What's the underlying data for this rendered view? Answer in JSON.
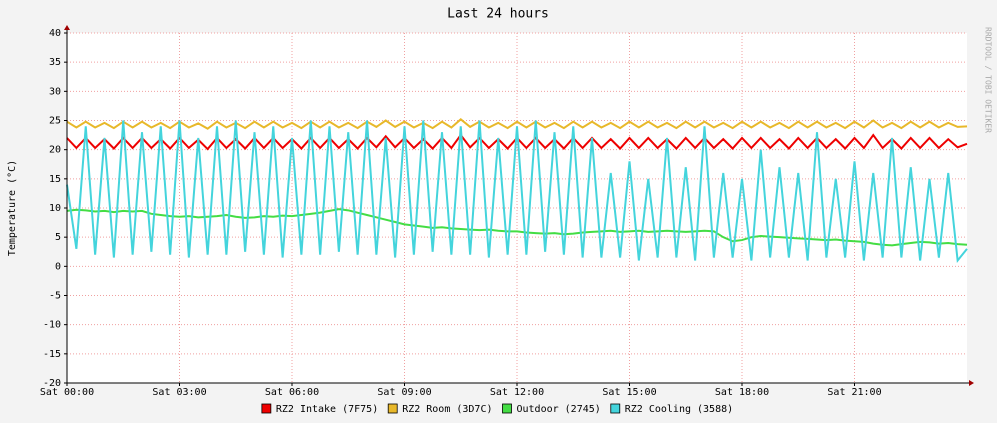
{
  "chart_data": {
    "type": "line",
    "title": "Last 24 hours",
    "y_label": "Temperature (°C)",
    "watermark": "RRDTOOL / TOBI OETIKER",
    "xlim": [
      0,
      24
    ],
    "xticks": [
      {
        "value": 0,
        "label": "Sat 00:00"
      },
      {
        "value": 3,
        "label": "Sat 03:00"
      },
      {
        "value": 6,
        "label": "Sat 06:00"
      },
      {
        "value": 9,
        "label": "Sat 09:00"
      },
      {
        "value": 12,
        "label": "Sat 12:00"
      },
      {
        "value": 15,
        "label": "Sat 15:00"
      },
      {
        "value": 18,
        "label": "Sat 18:00"
      },
      {
        "value": 21,
        "label": "Sat 21:00"
      }
    ],
    "ylim": [
      -20,
      40
    ],
    "yticks": [
      40,
      35,
      30,
      25,
      20,
      15,
      10,
      5,
      0,
      -5,
      -10,
      -15,
      -20
    ],
    "grid": true,
    "legend": "bottom",
    "x": [
      0,
      0.25,
      0.5,
      0.75,
      1,
      1.25,
      1.5,
      1.75,
      2,
      2.25,
      2.5,
      2.75,
      3,
      3.25,
      3.5,
      3.75,
      4,
      4.25,
      4.5,
      4.75,
      5,
      5.25,
      5.5,
      5.75,
      6,
      6.25,
      6.5,
      6.75,
      7,
      7.25,
      7.5,
      7.75,
      8,
      8.25,
      8.5,
      8.75,
      9,
      9.25,
      9.5,
      9.75,
      10,
      10.25,
      10.5,
      10.75,
      11,
      11.25,
      11.5,
      11.75,
      12,
      12.25,
      12.5,
      12.75,
      13,
      13.25,
      13.5,
      13.75,
      14,
      14.25,
      14.5,
      14.75,
      15,
      15.25,
      15.5,
      15.75,
      16,
      16.25,
      16.5,
      16.75,
      17,
      17.25,
      17.5,
      17.75,
      18,
      18.25,
      18.5,
      18.75,
      19,
      19.25,
      19.5,
      19.75,
      20,
      20.25,
      20.5,
      20.75,
      21,
      21.25,
      21.5,
      21.75,
      22,
      22.25,
      22.5,
      22.75,
      23,
      23.25,
      23.5,
      23.75,
      24
    ],
    "series": [
      {
        "name": "RZ2 Intake (7F75)",
        "color": "#ee0000",
        "values": [
          22,
          20.3,
          22,
          20.3,
          21.8,
          20.2,
          22,
          20.3,
          22,
          20.3,
          21.8,
          20.2,
          22,
          20.3,
          21.7,
          20.1,
          22,
          20.3,
          21.8,
          20.2,
          22,
          20.3,
          22,
          20.3,
          21.8,
          20.2,
          22,
          20.3,
          22,
          20.3,
          21.8,
          20.2,
          22,
          20.4,
          22.3,
          20.4,
          22,
          20.3,
          21.8,
          20.2,
          22,
          20.3,
          22.5,
          20.4,
          22,
          20.3,
          21.8,
          20.2,
          22,
          20.3,
          22,
          20.3,
          21.8,
          20.2,
          22,
          20.3,
          22,
          20.3,
          21.8,
          20.2,
          22,
          20.3,
          22,
          20.3,
          21.8,
          20.2,
          22,
          20.3,
          22,
          20.3,
          21.8,
          20.2,
          22,
          20.3,
          22,
          20.3,
          21.8,
          20.2,
          22,
          20.3,
          22,
          20.3,
          21.8,
          20.2,
          22,
          20.3,
          22.5,
          20.3,
          21.8,
          20.2,
          22,
          20.3,
          22,
          20.3,
          21.8,
          20.4,
          21
        ]
      },
      {
        "name": "RZ2 Room (3D7C)",
        "color": "#e8b82a",
        "values": [
          24.8,
          23.8,
          24.8,
          23.8,
          24.6,
          23.7,
          24.8,
          23.8,
          24.8,
          23.8,
          24.6,
          23.7,
          24.8,
          23.8,
          24.5,
          23.6,
          24.8,
          23.8,
          24.6,
          23.7,
          24.8,
          23.8,
          24.8,
          23.8,
          24.6,
          23.7,
          24.8,
          23.8,
          24.8,
          23.8,
          24.6,
          23.7,
          24.8,
          23.9,
          25,
          23.9,
          24.8,
          23.8,
          24.6,
          23.7,
          24.8,
          23.8,
          25.2,
          23.9,
          24.8,
          23.8,
          24.6,
          23.7,
          24.8,
          23.8,
          24.8,
          23.8,
          24.6,
          23.7,
          24.8,
          23.8,
          24.8,
          23.8,
          24.6,
          23.7,
          24.8,
          23.8,
          24.8,
          23.8,
          24.6,
          23.7,
          24.8,
          23.8,
          24.8,
          23.8,
          24.6,
          23.7,
          24.8,
          23.8,
          24.8,
          23.8,
          24.6,
          23.7,
          24.8,
          23.8,
          24.8,
          23.8,
          24.6,
          23.7,
          24.8,
          23.8,
          25,
          23.8,
          24.6,
          23.7,
          24.8,
          23.8,
          24.8,
          23.8,
          24.6,
          23.9,
          24
        ]
      },
      {
        "name": "Outdoor (2745)",
        "color": "#44dd44",
        "values": [
          9.5,
          9.7,
          9.6,
          9.4,
          9.5,
          9.3,
          9.5,
          9.4,
          9.5,
          9.0,
          8.8,
          8.6,
          8.5,
          8.6,
          8.4,
          8.5,
          8.6,
          8.8,
          8.5,
          8.3,
          8.4,
          8.6,
          8.5,
          8.7,
          8.6,
          8.8,
          9.0,
          9.2,
          9.5,
          9.8,
          9.6,
          9.2,
          8.8,
          8.4,
          8.0,
          7.6,
          7.2,
          7.0,
          6.8,
          6.6,
          6.7,
          6.5,
          6.4,
          6.3,
          6.2,
          6.3,
          6.1,
          6.0,
          6.0,
          5.8,
          5.7,
          5.6,
          5.7,
          5.5,
          5.6,
          5.8,
          5.9,
          6.0,
          6.1,
          5.9,
          6.0,
          6.1,
          5.9,
          6.0,
          6.1,
          6.0,
          5.9,
          6.0,
          6.1,
          6.0,
          5.0,
          4.3,
          4.5,
          5.0,
          5.2,
          5.1,
          5.0,
          4.9,
          4.8,
          4.7,
          4.6,
          4.5,
          4.6,
          4.4,
          4.3,
          4.2,
          3.9,
          3.7,
          3.6,
          3.8,
          4.0,
          4.2,
          4.1,
          3.9,
          4.0,
          3.8,
          3.7
        ]
      },
      {
        "name": "RZ2 Cooling (3588)",
        "color": "#44d4dc",
        "values": [
          14,
          3,
          24,
          2,
          22,
          1.5,
          25,
          2,
          23,
          2.5,
          24,
          2,
          25,
          1.5,
          22,
          2,
          24,
          2,
          25,
          2.5,
          23,
          2,
          24,
          1.5,
          22,
          2,
          25,
          2,
          24,
          2.5,
          23,
          2,
          25,
          2,
          22,
          1.5,
          24,
          2,
          25,
          2.5,
          23,
          2,
          24,
          2,
          25,
          1.5,
          22,
          2,
          24,
          2,
          25,
          2.5,
          23,
          2,
          24,
          1.5,
          22,
          1.5,
          16,
          1.5,
          18,
          1,
          15,
          1.5,
          22,
          1.5,
          17,
          1,
          24,
          1.5,
          16,
          1.5,
          15,
          1,
          20,
          1.5,
          17,
          1.5,
          16,
          1,
          23,
          1.5,
          15,
          1.5,
          18,
          1,
          16,
          1.5,
          22,
          1.5,
          17,
          1,
          15,
          1.5,
          16,
          1,
          3
        ]
      }
    ]
  }
}
